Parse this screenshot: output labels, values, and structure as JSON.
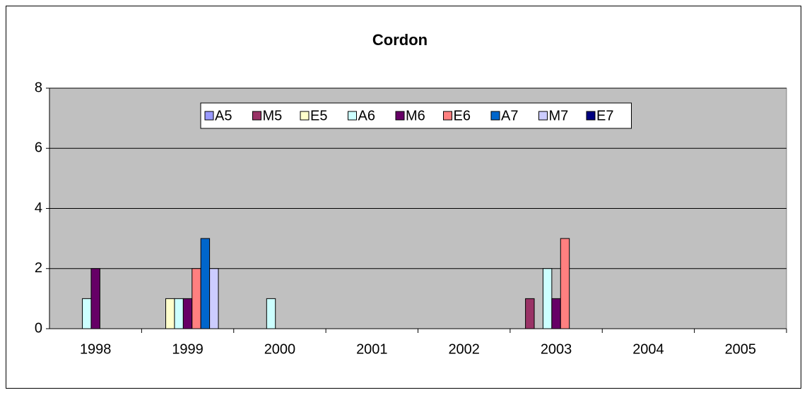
{
  "chart_data": {
    "type": "bar",
    "title": "Cordon",
    "categories": [
      "1998",
      "1999",
      "2000",
      "2001",
      "2002",
      "2003",
      "2004",
      "2005"
    ],
    "series": [
      {
        "name": "A5",
        "color": "#9999ff",
        "values": [
          0,
          0,
          0,
          0,
          0,
          0,
          0,
          0
        ]
      },
      {
        "name": "M5",
        "color": "#993366",
        "values": [
          0,
          0,
          0,
          0,
          0,
          1,
          0,
          0
        ]
      },
      {
        "name": "E5",
        "color": "#ffffcc",
        "values": [
          0,
          1,
          0,
          0,
          0,
          0,
          0,
          0
        ]
      },
      {
        "name": "A6",
        "color": "#ccffff",
        "values": [
          1,
          1,
          1,
          0,
          0,
          2,
          0,
          0
        ]
      },
      {
        "name": "M6",
        "color": "#660066",
        "values": [
          2,
          1,
          0,
          0,
          0,
          1,
          0,
          0
        ]
      },
      {
        "name": "E6",
        "color": "#ff8080",
        "values": [
          0,
          2,
          0,
          0,
          0,
          3,
          0,
          0
        ]
      },
      {
        "name": "A7",
        "color": "#0066cc",
        "values": [
          0,
          3,
          0,
          0,
          0,
          0,
          0,
          0
        ]
      },
      {
        "name": "M7",
        "color": "#ccccff",
        "values": [
          0,
          2,
          0,
          0,
          0,
          0,
          0,
          0
        ]
      },
      {
        "name": "E7",
        "color": "#000080",
        "values": [
          0,
          0,
          0,
          0,
          0,
          0,
          0,
          0
        ]
      }
    ],
    "ylim": [
      0,
      8
    ],
    "yticks": [
      0,
      2,
      4,
      6,
      8
    ],
    "grid": true,
    "legend": "top"
  }
}
